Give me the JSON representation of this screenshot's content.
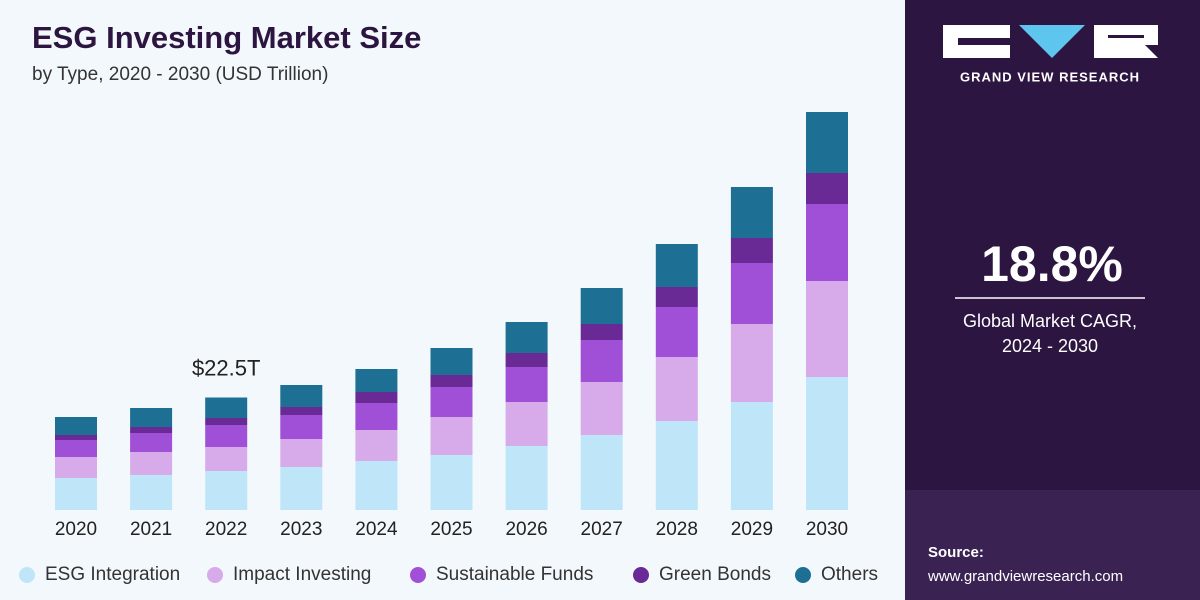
{
  "chart_data": {
    "type": "stacked_bar",
    "title": "ESG Investing Market Size",
    "subtitle": "by Type, 2020 - 2030 (USD Trillion)",
    "categories": [
      "2020",
      "2021",
      "2022",
      "2023",
      "2024",
      "2025",
      "2026",
      "2027",
      "2028",
      "2029",
      "2030"
    ],
    "series": [
      {
        "name": "ESG Integration",
        "color": "#bfe6f8",
        "values": [
          6.4,
          7.0,
          7.8,
          8.6,
          9.8,
          11.0,
          12.8,
          15.0,
          17.8,
          21.6,
          26.6
        ]
      },
      {
        "name": "Impact Investing",
        "color": "#d7aaea",
        "values": [
          4.2,
          4.6,
          4.8,
          5.6,
          6.2,
          7.6,
          8.8,
          10.6,
          12.8,
          15.6,
          19.2
        ]
      },
      {
        "name": "Sustainable Funds",
        "color": "#a050d6",
        "values": [
          3.4,
          3.8,
          4.4,
          4.8,
          5.4,
          6.0,
          7.0,
          8.4,
          10.0,
          12.2,
          15.4
        ]
      },
      {
        "name": "Green Bonds",
        "color": "#6a2a96",
        "values": [
          1.0,
          1.2,
          1.4,
          1.6,
          2.2,
          2.4,
          2.8,
          3.2,
          4.0,
          5.0,
          6.2
        ]
      },
      {
        "name": "Others",
        "color": "#1e6f94",
        "values": [
          3.6,
          3.8,
          4.1,
          4.4,
          4.6,
          5.4,
          6.2,
          7.2,
          8.6,
          10.2,
          12.2
        ]
      }
    ],
    "annotations": [
      {
        "category": "2022",
        "value": 22.5,
        "label": "$22.5T"
      }
    ]
  },
  "sidebar": {
    "brand": "GRAND VIEW RESEARCH",
    "cagr": "18.8%",
    "cagr_caption": [
      "Global Market CAGR,",
      "2024 - 2030"
    ],
    "source_label": "Source:",
    "source_url": "www.grandviewresearch.com"
  }
}
